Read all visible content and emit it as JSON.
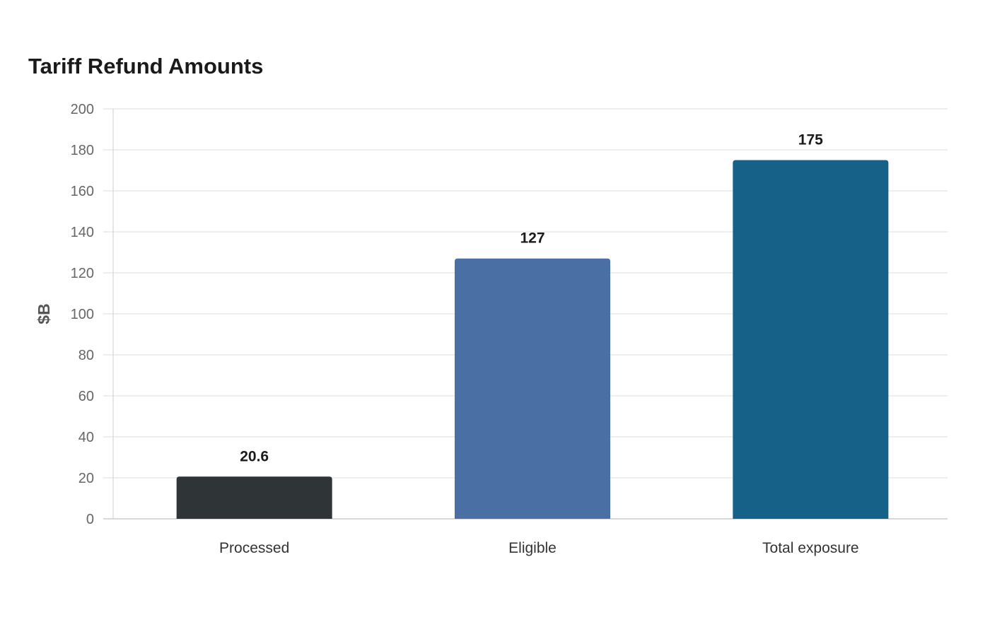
{
  "chart_data": {
    "type": "bar",
    "title": "Tariff Refund Amounts",
    "xlabel": "",
    "ylabel": "$B",
    "categories": [
      "Processed",
      "Eligible",
      "Total exposure"
    ],
    "values": [
      20.6,
      127,
      175
    ],
    "value_labels": [
      "20.6",
      "127",
      "175"
    ],
    "colors": [
      "#2f3437",
      "#4a6fa5",
      "#166188"
    ],
    "ylim": [
      0,
      200
    ],
    "yticks": [
      0,
      20,
      40,
      60,
      80,
      100,
      120,
      140,
      160,
      180,
      200
    ],
    "grid": true,
    "legend": "none"
  }
}
